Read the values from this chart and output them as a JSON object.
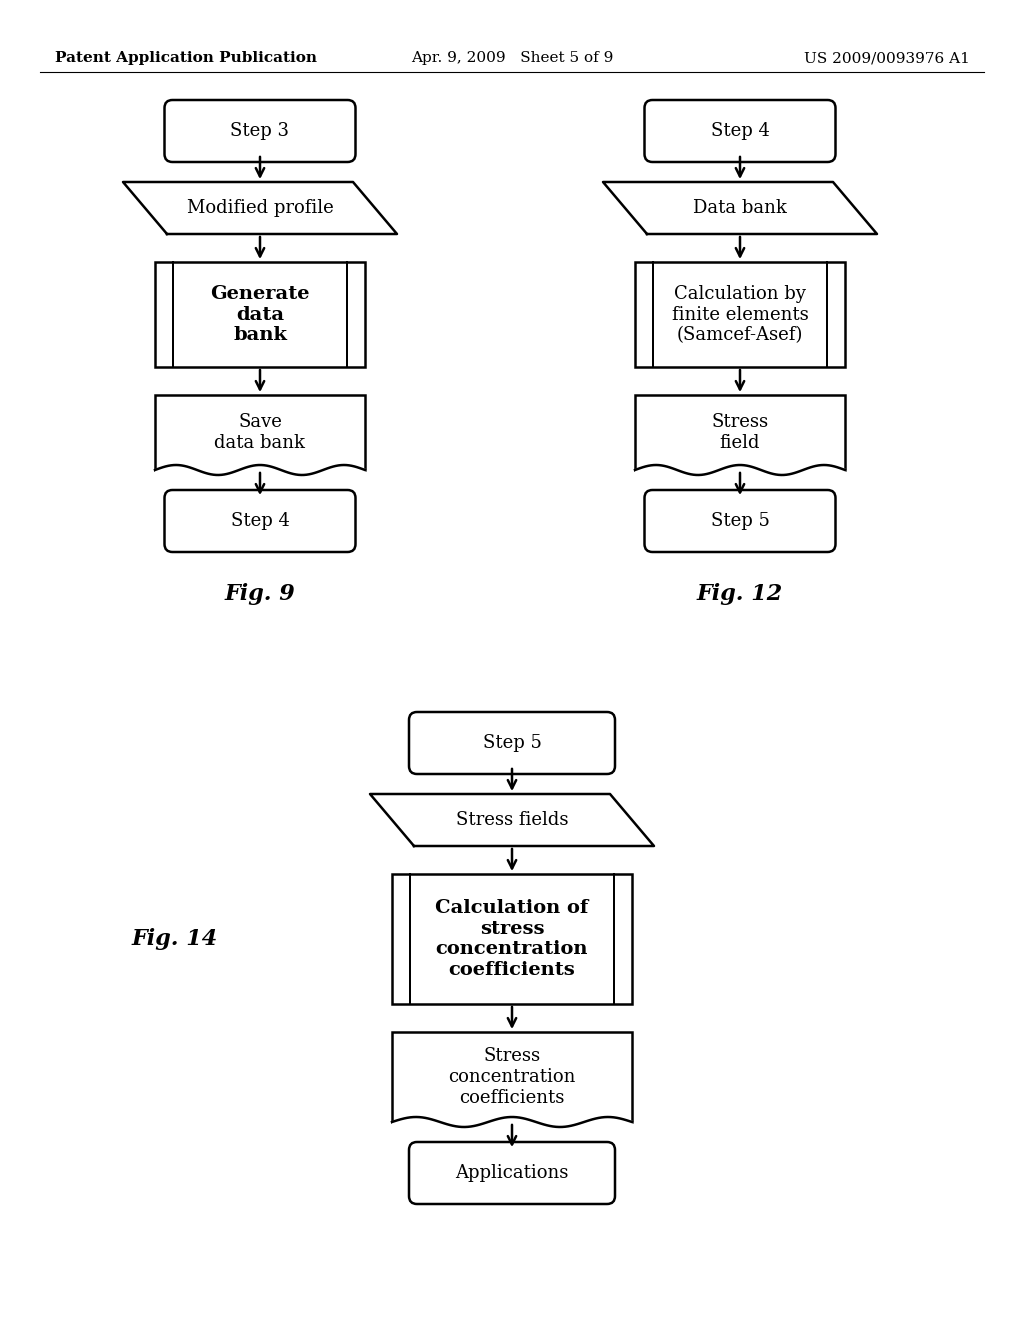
{
  "header_left": "Patent Application Publication",
  "header_center": "Apr. 9, 2009   Sheet 5 of 9",
  "header_right": "US 2009/0093976 A1",
  "fig9_label": "Fig. 9",
  "fig12_label": "Fig. 12",
  "fig14_label": "Fig. 14",
  "background_color": "#ffffff",
  "line_color": "#000000",
  "text_color": "#000000",
  "font_size": 13,
  "bold_font_size": 14,
  "header_font_size": 11
}
